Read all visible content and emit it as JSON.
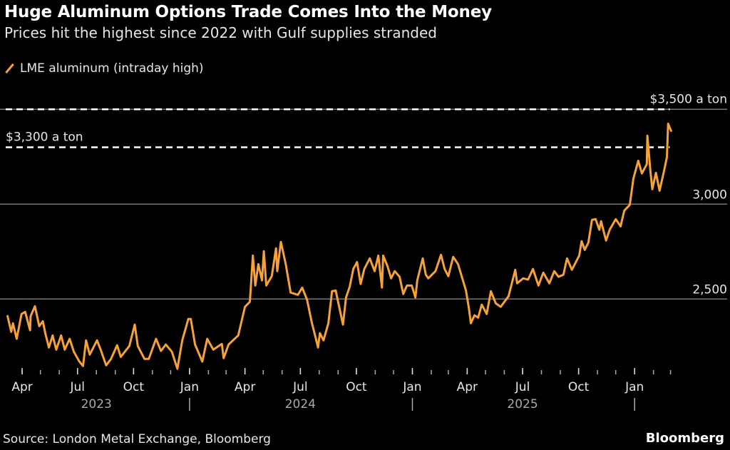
{
  "title": "Huge Aluminum Options Trade Comes Into the Money",
  "subtitle": "Prices hit the highest since 2022 with Gulf supplies stranded",
  "source": "Source: London Metal Exchange, Bloomberg",
  "brand": "Bloomberg",
  "colors": {
    "series": "#f7a238",
    "background": "#000000",
    "grid": "#777777",
    "reference": "#ffffff"
  },
  "chart_data": {
    "type": "line",
    "title": "Huge Aluminum Options Trade Comes Into the Money",
    "subtitle": "Prices hit the highest since 2022 with Gulf supplies stranded",
    "xlabel": "",
    "ylabel": "",
    "xlim": [
      "2023-03-05",
      "2026-06-02"
    ],
    "ylim": [
      2140,
      3550
    ],
    "grid": true,
    "y_axis_side": "right",
    "legend_position": "top-left",
    "y_ticks": [
      {
        "value": 2500,
        "label": "2,500"
      },
      {
        "value": 3000,
        "label": "3,000"
      }
    ],
    "reference_lines": [
      {
        "value": 3500,
        "label": "$3,500 a ton",
        "style": "dashed"
      },
      {
        "value": 3300,
        "label": "$3,300 a ton",
        "style": "dashed"
      }
    ],
    "x_ticks": [
      {
        "date": "2023-04-01",
        "label": "Apr"
      },
      {
        "date": "2023-07-01",
        "label": "Jul"
      },
      {
        "date": "2023-10-01",
        "label": "Oct"
      },
      {
        "date": "2024-01-01",
        "label": "Jan"
      },
      {
        "date": "2024-04-01",
        "label": "Apr"
      },
      {
        "date": "2024-07-01",
        "label": "Jul"
      },
      {
        "date": "2024-10-01",
        "label": "Oct"
      },
      {
        "date": "2025-01-01",
        "label": "Jan"
      },
      {
        "date": "2025-04-01",
        "label": "Apr"
      },
      {
        "date": "2025-07-01",
        "label": "Jul"
      },
      {
        "date": "2025-10-01",
        "label": "Oct"
      },
      {
        "date": "2026-01-01",
        "label": "Jan"
      }
    ],
    "year_labels": [
      {
        "label": "2023",
        "center": "2023-08-01"
      },
      {
        "label": "2024",
        "center": "2024-07-01"
      },
      {
        "label": "2025",
        "center": "2025-07-01"
      }
    ],
    "year_separators": [
      "2024-01-01",
      "2025-01-01",
      "2026-01-01"
    ],
    "series": [
      {
        "name": "LME aluminum (intraday high)",
        "points": [
          [
            "2023-03-08",
            2410
          ],
          [
            "2023-03-14",
            2327
          ],
          [
            "2023-03-17",
            2372
          ],
          [
            "2023-03-23",
            2290
          ],
          [
            "2023-03-31",
            2421
          ],
          [
            "2023-04-06",
            2432
          ],
          [
            "2023-04-14",
            2335
          ],
          [
            "2023-04-15",
            2410
          ],
          [
            "2023-04-22",
            2462
          ],
          [
            "2023-04-29",
            2357
          ],
          [
            "2023-05-05",
            2383
          ],
          [
            "2023-05-09",
            2320
          ],
          [
            "2023-05-15",
            2244
          ],
          [
            "2023-05-21",
            2308
          ],
          [
            "2023-05-27",
            2233
          ],
          [
            "2023-06-04",
            2308
          ],
          [
            "2023-06-10",
            2233
          ],
          [
            "2023-06-18",
            2290
          ],
          [
            "2023-06-25",
            2222
          ],
          [
            "2023-07-04",
            2170
          ],
          [
            "2023-07-10",
            2147
          ],
          [
            "2023-07-15",
            2282
          ],
          [
            "2023-07-21",
            2207
          ],
          [
            "2023-08-02",
            2282
          ],
          [
            "2023-08-08",
            2233
          ],
          [
            "2023-08-17",
            2150
          ],
          [
            "2023-08-25",
            2184
          ],
          [
            "2023-09-04",
            2256
          ],
          [
            "2023-09-10",
            2195
          ],
          [
            "2023-09-24",
            2252
          ],
          [
            "2023-10-03",
            2365
          ],
          [
            "2023-10-08",
            2252
          ],
          [
            "2023-10-19",
            2184
          ],
          [
            "2023-10-26",
            2184
          ],
          [
            "2023-11-07",
            2290
          ],
          [
            "2023-11-15",
            2226
          ],
          [
            "2023-11-23",
            2260
          ],
          [
            "2023-12-03",
            2222
          ],
          [
            "2023-12-12",
            2132
          ],
          [
            "2023-12-20",
            2282
          ],
          [
            "2023-12-30",
            2395
          ],
          [
            "2024-01-03",
            2395
          ],
          [
            "2024-01-10",
            2260
          ],
          [
            "2024-01-22",
            2170
          ],
          [
            "2024-01-30",
            2290
          ],
          [
            "2024-02-09",
            2233
          ],
          [
            "2024-02-23",
            2263
          ],
          [
            "2024-02-26",
            2188
          ],
          [
            "2024-03-05",
            2260
          ],
          [
            "2024-03-21",
            2308
          ],
          [
            "2024-04-01",
            2459
          ],
          [
            "2024-04-09",
            2485
          ],
          [
            "2024-04-14",
            2729
          ],
          [
            "2024-04-18",
            2571
          ],
          [
            "2024-04-23",
            2684
          ],
          [
            "2024-04-29",
            2598
          ],
          [
            "2024-05-02",
            2752
          ],
          [
            "2024-05-06",
            2571
          ],
          [
            "2024-05-15",
            2620
          ],
          [
            "2024-05-22",
            2767
          ],
          [
            "2024-05-24",
            2647
          ],
          [
            "2024-05-30",
            2801
          ],
          [
            "2024-06-07",
            2684
          ],
          [
            "2024-06-15",
            2534
          ],
          [
            "2024-06-27",
            2522
          ],
          [
            "2024-07-04",
            2560
          ],
          [
            "2024-07-12",
            2496
          ],
          [
            "2024-07-20",
            2372
          ],
          [
            "2024-07-26",
            2297
          ],
          [
            "2024-07-30",
            2244
          ],
          [
            "2024-08-02",
            2320
          ],
          [
            "2024-08-08",
            2282
          ],
          [
            "2024-08-16",
            2372
          ],
          [
            "2024-08-22",
            2541
          ],
          [
            "2024-08-28",
            2545
          ],
          [
            "2024-09-09",
            2365
          ],
          [
            "2024-09-14",
            2508
          ],
          [
            "2024-09-20",
            2564
          ],
          [
            "2024-09-26",
            2658
          ],
          [
            "2024-10-02",
            2695
          ],
          [
            "2024-10-08",
            2579
          ],
          [
            "2024-10-14",
            2658
          ],
          [
            "2024-10-23",
            2714
          ],
          [
            "2024-10-31",
            2647
          ],
          [
            "2024-11-06",
            2729
          ],
          [
            "2024-11-12",
            2560
          ],
          [
            "2024-11-14",
            2729
          ],
          [
            "2024-11-21",
            2673
          ],
          [
            "2024-11-27",
            2609
          ],
          [
            "2024-12-03",
            2647
          ],
          [
            "2024-12-11",
            2617
          ],
          [
            "2024-12-17",
            2526
          ],
          [
            "2024-12-23",
            2571
          ],
          [
            "2024-12-31",
            2571
          ],
          [
            "2025-01-06",
            2508
          ],
          [
            "2025-01-09",
            2598
          ],
          [
            "2025-01-18",
            2714
          ],
          [
            "2025-01-23",
            2628
          ],
          [
            "2025-01-27",
            2609
          ],
          [
            "2025-02-08",
            2647
          ],
          [
            "2025-02-17",
            2733
          ],
          [
            "2025-02-23",
            2658
          ],
          [
            "2025-03-01",
            2620
          ],
          [
            "2025-03-09",
            2722
          ],
          [
            "2025-03-17",
            2684
          ],
          [
            "2025-03-24",
            2609
          ],
          [
            "2025-03-30",
            2545
          ],
          [
            "2025-04-04",
            2447
          ],
          [
            "2025-04-07",
            2372
          ],
          [
            "2025-04-13",
            2414
          ],
          [
            "2025-04-19",
            2402
          ],
          [
            "2025-04-25",
            2470
          ],
          [
            "2025-05-03",
            2421
          ],
          [
            "2025-05-10",
            2541
          ],
          [
            "2025-05-18",
            2477
          ],
          [
            "2025-05-26",
            2459
          ],
          [
            "2025-06-02",
            2489
          ],
          [
            "2025-06-08",
            2515
          ],
          [
            "2025-06-19",
            2654
          ],
          [
            "2025-06-22",
            2583
          ],
          [
            "2025-07-02",
            2609
          ],
          [
            "2025-07-10",
            2602
          ],
          [
            "2025-07-18",
            2658
          ],
          [
            "2025-07-27",
            2571
          ],
          [
            "2025-08-04",
            2639
          ],
          [
            "2025-08-14",
            2583
          ],
          [
            "2025-08-22",
            2647
          ],
          [
            "2025-08-29",
            2617
          ],
          [
            "2025-09-06",
            2628
          ],
          [
            "2025-09-12",
            2714
          ],
          [
            "2025-09-20",
            2654
          ],
          [
            "2025-10-02",
            2729
          ],
          [
            "2025-10-06",
            2805
          ],
          [
            "2025-10-11",
            2759
          ],
          [
            "2025-10-17",
            2797
          ],
          [
            "2025-10-23",
            2917
          ],
          [
            "2025-10-29",
            2921
          ],
          [
            "2025-11-04",
            2865
          ],
          [
            "2025-11-07",
            2910
          ],
          [
            "2025-11-15",
            2808
          ],
          [
            "2025-11-21",
            2865
          ],
          [
            "2025-12-01",
            2921
          ],
          [
            "2025-12-09",
            2883
          ],
          [
            "2025-12-15",
            2966
          ],
          [
            "2025-12-24",
            2996
          ],
          [
            "2025-12-30",
            3135
          ],
          [
            "2026-01-07",
            3229
          ],
          [
            "2026-01-13",
            3162
          ],
          [
            "2026-01-21",
            3211
          ],
          [
            "2026-01-22",
            3361
          ],
          [
            "2026-01-27",
            3173
          ],
          [
            "2026-01-30",
            3079
          ],
          [
            "2026-02-05",
            3165
          ],
          [
            "2026-02-11",
            3071
          ],
          [
            "2026-02-19",
            3184
          ],
          [
            "2026-02-23",
            3248
          ],
          [
            "2026-02-25",
            3424
          ],
          [
            "2026-03-02",
            3387
          ]
        ]
      }
    ]
  }
}
